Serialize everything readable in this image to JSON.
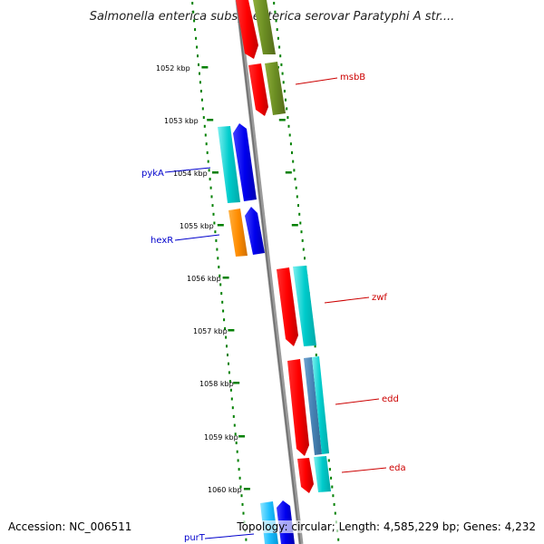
{
  "title": "Salmonella enterica subsp. enterica serovar Paratyphi A str....",
  "ticks": [
    "1052 kbp",
    "1053 kbp",
    "1054 kbp",
    "1055 kbp",
    "1056 kbp",
    "1057 kbp",
    "1058 kbp",
    "1059 kbp",
    "1060 kbp"
  ],
  "genes": {
    "msbB": "msbB",
    "pykA": "pykA",
    "hexR": "hexR",
    "zwf": "zwf",
    "edd": "edd",
    "eda": "eda",
    "purT": "purT"
  },
  "colors": {
    "red": "#ff0000",
    "olive": "#6b8e23",
    "cyan": "#00cccc",
    "blue": "#0000ee",
    "orange": "#ff8c00",
    "steel": "#4682b4",
    "backbone": "#808080",
    "tick": "#008000",
    "label_fwd": "#cc0000",
    "label_rev": "#0000cc"
  },
  "footer": {
    "accession": "Accession: NC_006511",
    "topology": "Topology: circular; Length: 4,585,229 bp; Genes: 4,232"
  }
}
